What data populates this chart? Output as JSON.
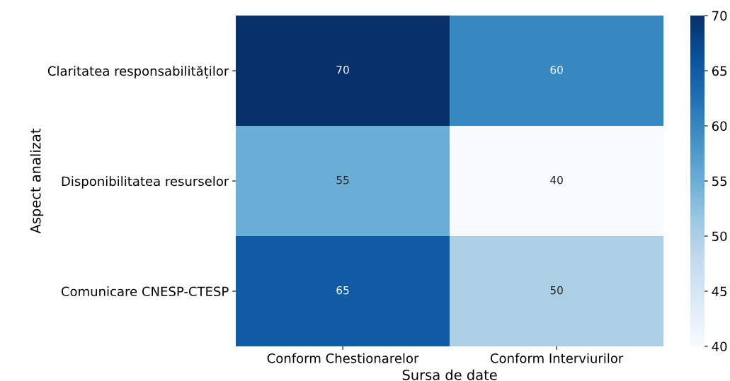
{
  "chart_data": {
    "type": "heatmap",
    "xlabel": "Sursa de date",
    "ylabel": "Aspect analizat",
    "categories": [
      "Conform Chestionarelor",
      "Conform Interviurilor"
    ],
    "y_categories": [
      "Claritatea responsabilităților",
      "Disponibilitatea resurselor",
      "Comunicare CNESP-CTESP"
    ],
    "cells": [
      [
        70,
        60
      ],
      [
        55,
        40
      ],
      [
        65,
        50
      ]
    ],
    "clim": [
      40,
      70
    ],
    "cticks": [
      40,
      45,
      50,
      55,
      60,
      65,
      70
    ],
    "data_labels": true,
    "grid": false
  }
}
